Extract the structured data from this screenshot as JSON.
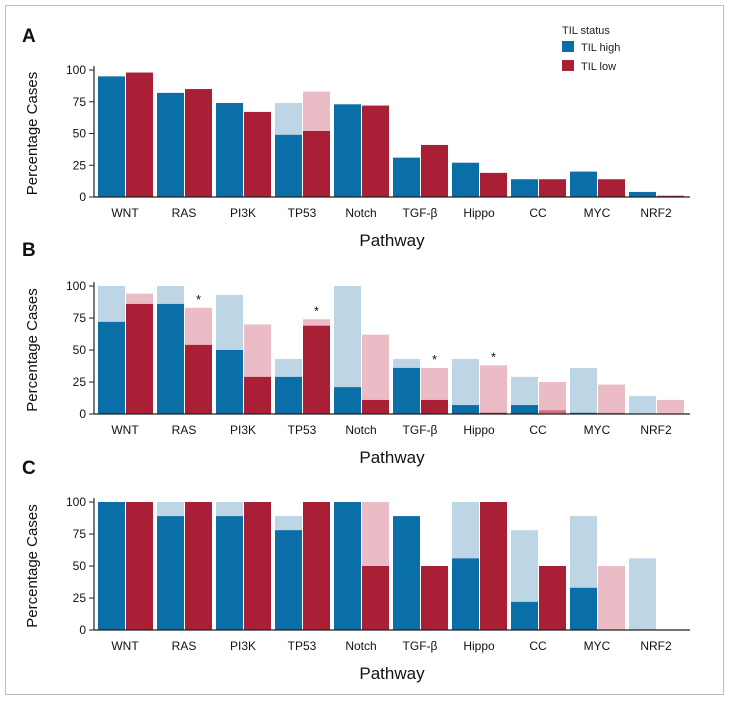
{
  "legend": {
    "title": "TIL status",
    "items": [
      {
        "label": "TIL high",
        "color": "#0a6fa6"
      },
      {
        "label": "TIL low",
        "color": "#a81f36"
      }
    ]
  },
  "colors": {
    "high_dark": "#0a6fa6",
    "high_light": "#bdd5e5",
    "low_dark": "#a81f36",
    "low_light": "#ebbcc5",
    "low_medium": "#cf6e7e",
    "axis": "#222222"
  },
  "chart_data": [
    {
      "panel": "A",
      "type": "bar",
      "xlabel": "Pathway",
      "ylabel": "Percentage Cases",
      "ylim": [
        0,
        100
      ],
      "yticks": [
        "0",
        "25",
        "50",
        "75",
        "100"
      ],
      "categories": [
        "WNT",
        "RAS",
        "PI3K",
        "TP53",
        "Notch",
        "TGF-β",
        "Hippo",
        "CC",
        "MYC",
        "NRF2"
      ],
      "series": [
        {
          "name": "TIL high",
          "values": [
            95,
            82,
            74,
            49,
            73,
            31,
            27,
            14,
            20,
            4
          ],
          "total": [
            95,
            82,
            74,
            74,
            73,
            31,
            27,
            14,
            20,
            4
          ]
        },
        {
          "name": "TIL low",
          "values": [
            98,
            85,
            67,
            52,
            72,
            41,
            19,
            14,
            14,
            1
          ],
          "total": [
            98,
            85,
            67,
            83,
            72,
            41,
            19,
            14,
            14,
            1
          ]
        }
      ],
      "annotations": []
    },
    {
      "panel": "B",
      "type": "bar",
      "xlabel": "Pathway",
      "ylabel": "Percentage Cases",
      "ylim": [
        0,
        100
      ],
      "yticks": [
        "0",
        "25",
        "50",
        "75",
        "100"
      ],
      "categories": [
        "WNT",
        "RAS",
        "PI3K",
        "TP53",
        "Notch",
        "TGF-β",
        "Hippo",
        "CC",
        "MYC",
        "NRF2"
      ],
      "series": [
        {
          "name": "TIL high",
          "values": [
            72,
            86,
            50,
            29,
            21,
            36,
            7,
            7,
            1,
            0
          ],
          "total": [
            100,
            100,
            93,
            43,
            100,
            43,
            43,
            29,
            36,
            14
          ]
        },
        {
          "name": "TIL low",
          "values": [
            86,
            54,
            29,
            69,
            11,
            11,
            1,
            3,
            1,
            0
          ],
          "total": [
            94,
            83,
            70,
            74,
            62,
            36,
            38,
            25,
            23,
            11
          ]
        }
      ],
      "annotations": [
        {
          "text": "*",
          "category": "RAS",
          "series": "TIL low"
        },
        {
          "text": "*",
          "category": "TP53",
          "series": "TIL low"
        },
        {
          "text": "*",
          "category": "TGF-β",
          "series": "TIL low"
        },
        {
          "text": "*",
          "category": "Hippo",
          "series": "TIL low"
        }
      ]
    },
    {
      "panel": "C",
      "type": "bar",
      "xlabel": "Pathway",
      "ylabel": "Percentage Cases",
      "ylim": [
        0,
        100
      ],
      "yticks": [
        "0",
        "25",
        "50",
        "75",
        "100"
      ],
      "categories": [
        "WNT",
        "RAS",
        "PI3K",
        "TP53",
        "Notch",
        "TGF-β",
        "Hippo",
        "CC",
        "MYC",
        "NRF2"
      ],
      "series": [
        {
          "name": "TIL high",
          "values": [
            100,
            89,
            89,
            78,
            100,
            89,
            56,
            22,
            33,
            0
          ],
          "total": [
            100,
            100,
            100,
            89,
            100,
            89,
            100,
            78,
            89,
            56
          ]
        },
        {
          "name": "TIL low",
          "values": [
            100,
            100,
            100,
            100,
            50,
            50,
            100,
            50,
            0,
            0
          ],
          "total": [
            100,
            100,
            100,
            100,
            100,
            50,
            100,
            50,
            50,
            0
          ]
        }
      ],
      "annotations": []
    }
  ]
}
